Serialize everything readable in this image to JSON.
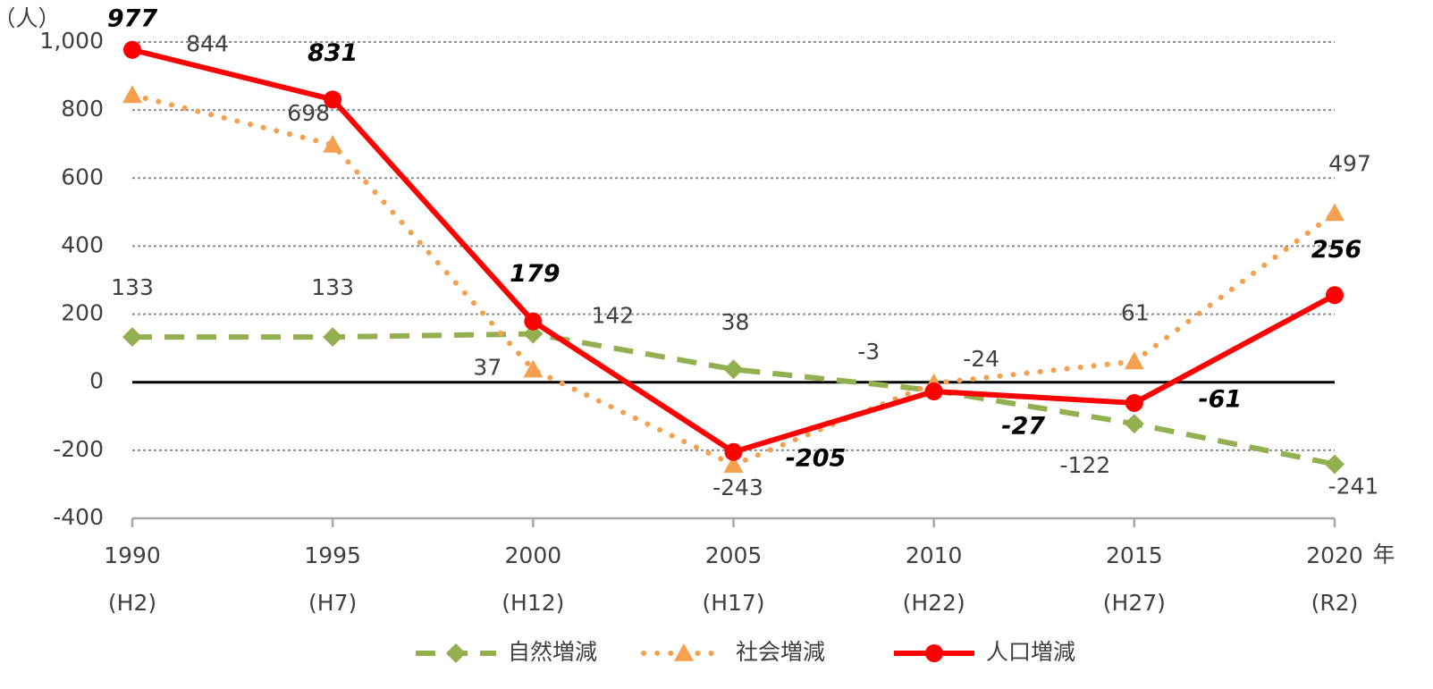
{
  "chart_data": {
    "type": "line",
    "y_unit": "（人）",
    "x_unit": "年",
    "categories": [
      "1990",
      "1995",
      "2000",
      "2005",
      "2010",
      "2015",
      "2020"
    ],
    "sub_categories": [
      "(H2)",
      "(H7)",
      "(H12)",
      "(H17)",
      "(H22)",
      "(H27)",
      "(R2)"
    ],
    "ylim": [
      -400,
      1000
    ],
    "yticks": [
      -400,
      -200,
      0,
      200,
      400,
      600,
      800,
      {
        "value": 1000,
        "label": "1,000"
      }
    ],
    "grid": true,
    "series": [
      {
        "name": "自然増減",
        "color": "#92b050",
        "style": "dashed",
        "marker": "diamond",
        "values": [
          133,
          133,
          142,
          38,
          -24,
          -122,
          -241
        ]
      },
      {
        "name": "社会増減",
        "color": "#f4a04f",
        "style": "dotted",
        "marker": "triangle",
        "values": [
          844,
          698,
          37,
          -243,
          -3,
          61,
          497
        ]
      },
      {
        "name": "人口増減",
        "color": "#ff0000",
        "style": "solid",
        "marker": "circle",
        "values": [
          977,
          831,
          179,
          -205,
          -27,
          -61,
          256
        ]
      }
    ],
    "legend": "bottom"
  }
}
